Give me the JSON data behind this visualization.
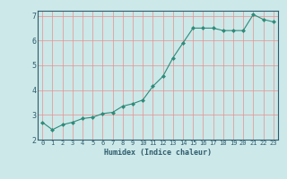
{
  "x": [
    0,
    1,
    2,
    3,
    4,
    5,
    6,
    7,
    8,
    9,
    10,
    11,
    12,
    13,
    14,
    15,
    16,
    17,
    18,
    19,
    20,
    21,
    22,
    23
  ],
  "y": [
    2.7,
    2.4,
    2.6,
    2.7,
    2.85,
    2.9,
    3.05,
    3.1,
    3.35,
    3.45,
    3.6,
    4.15,
    4.55,
    5.3,
    5.9,
    6.5,
    6.5,
    6.5,
    6.4,
    6.4,
    6.4,
    7.05,
    6.85,
    6.75
  ],
  "xlabel": "Humidex (Indice chaleur)",
  "ylim": [
    2,
    7.2
  ],
  "xlim": [
    -0.5,
    23.5
  ],
  "yticks": [
    2,
    3,
    4,
    5,
    6,
    7
  ],
  "xticks": [
    0,
    1,
    2,
    3,
    4,
    5,
    6,
    7,
    8,
    9,
    10,
    11,
    12,
    13,
    14,
    15,
    16,
    17,
    18,
    19,
    20,
    21,
    22,
    23
  ],
  "line_color": "#2e8b7a",
  "marker": "D",
  "marker_size": 2.0,
  "bg_color": "#cce8e8",
  "grid_color": "#e89090",
  "axis_color": "#2e5c6e",
  "tick_label_color": "#2e5c6e",
  "font_family": "monospace",
  "xlabel_fontsize": 6.0,
  "ytick_fontsize": 6.0,
  "xtick_fontsize": 5.0
}
